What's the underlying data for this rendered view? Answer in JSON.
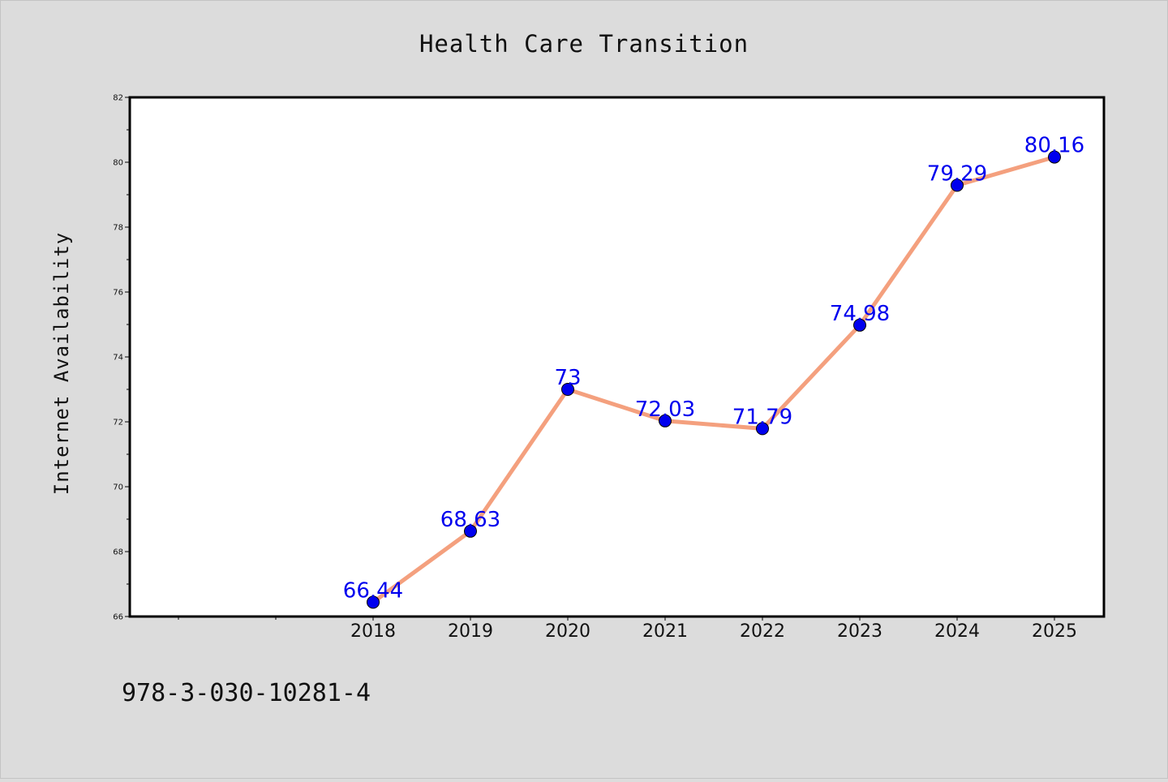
{
  "chart_data": {
    "type": "line",
    "title": "Health Care Transition",
    "xlabel": "",
    "ylabel": "Internet Availability",
    "categories": [
      "2018",
      "2019",
      "2020",
      "2021",
      "2022",
      "2023",
      "2024",
      "2025"
    ],
    "series": [
      {
        "values": [
          66.44,
          68.63,
          73,
          72.03,
          71.79,
          74.98,
          79.29,
          80.16
        ],
        "data_labels": [
          "66.44",
          "68.63",
          "73",
          "72.03",
          "71.79",
          "74.98",
          "79.29",
          "80.16"
        ]
      }
    ],
    "ylim": [
      66,
      82
    ],
    "yticks": [
      "66",
      "68",
      "70",
      "72",
      "74",
      "76",
      "78",
      "80",
      "82"
    ],
    "grid": false,
    "legend": "none",
    "colors": {
      "line": "#f4a07e",
      "marker": "#0000ee",
      "data_label": "#0000ee",
      "background": "#dcdcdc",
      "plot_background": "#ffffff"
    }
  },
  "footer": {
    "code": "978-3-030-10281-4"
  }
}
